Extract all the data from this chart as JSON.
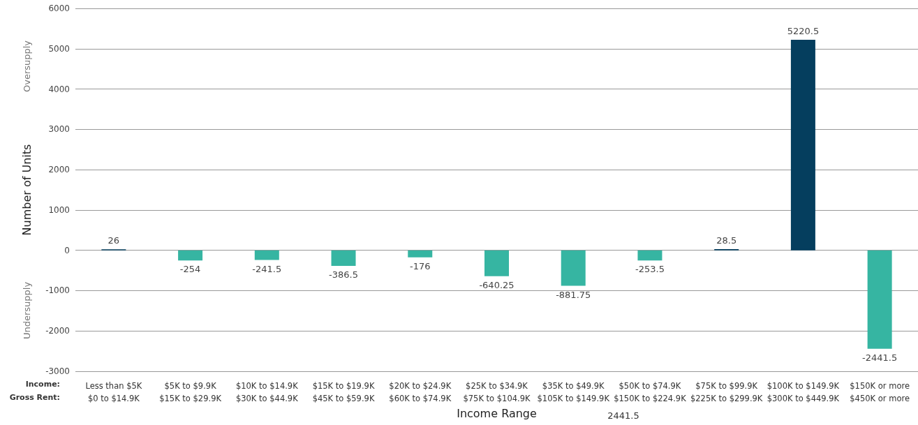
{
  "chart_data": {
    "type": "bar",
    "xlabel": "Income Range",
    "ylabel": "Number of Units",
    "categories": [
      "Less than $5K\n$0 to $14.9K",
      "$5K to $9.9K\n$15K to $29.9K",
      "$10K to $14.9K\n$30K to $44.9K",
      "$15K to $19.9K\n$45K to $59.9K",
      "$20K to $24.9K\n$60K to $74.9K",
      "$25K to $34.9K\n$75K to $104.9K",
      "$35K to $49.9K\n$105K to $149.9K",
      "$50K to $74.9K\n$150K to $224.9K",
      "$75K to $99.9K\n$225K to $299.9K",
      "$100K to $149.9K\n$300K to $449.9K",
      "$150K or more\n$450K or more"
    ],
    "values": [
      26,
      -254,
      -241.5,
      -386.5,
      -176,
      -640.25,
      -881.75,
      -253.5,
      28.5,
      5220.5,
      -2441.5
    ],
    "colors": [
      "#053e5e",
      "#36b5a2",
      "#36b5a2",
      "#36b5a2",
      "#36b5a2",
      "#36b5a2",
      "#36b5a2",
      "#36b5a2",
      "#053e5e",
      "#053e5e",
      "#36b5a2"
    ],
    "ylim": [
      -3000,
      6000
    ],
    "yticks": [
      -3000,
      -2000,
      -1000,
      0,
      1000,
      2000,
      3000,
      4000,
      5000,
      6000
    ],
    "grid": "y",
    "data_labels": true,
    "annotations": [
      "Oversupply",
      "Undersupply",
      "Income:",
      "Gross Rent:",
      "2441.5"
    ]
  }
}
